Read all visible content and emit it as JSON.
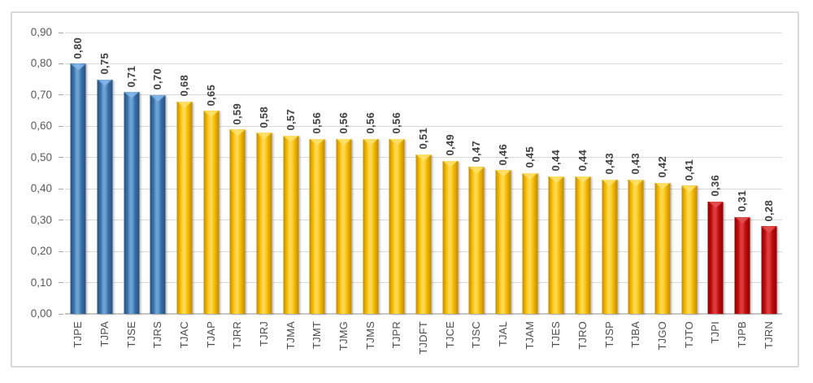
{
  "chart_data": {
    "type": "bar",
    "title": "",
    "xlabel": "",
    "ylabel": "",
    "categories": [
      "TJPE",
      "TJPA",
      "TJSE",
      "TJRS",
      "TJAC",
      "TJAP",
      "TJRR",
      "TJRJ",
      "TJMA",
      "TJMT",
      "TJMG",
      "TJMS",
      "TJPR",
      "TJDFT",
      "TJCE",
      "TJSC",
      "TJAL",
      "TJAM",
      "TJES",
      "TJRO",
      "TJSP",
      "TJBA",
      "TJGO",
      "TJTO",
      "TJPI",
      "TJPB",
      "TJRN"
    ],
    "values": [
      0.8,
      0.75,
      0.71,
      0.7,
      0.68,
      0.65,
      0.59,
      0.58,
      0.57,
      0.56,
      0.56,
      0.56,
      0.56,
      0.51,
      0.49,
      0.47,
      0.46,
      0.45,
      0.44,
      0.44,
      0.43,
      0.43,
      0.42,
      0.41,
      0.36,
      0.31,
      0.28
    ],
    "value_labels": [
      "0,80",
      "0,75",
      "0,71",
      "0,70",
      "0,68",
      "0,65",
      "0,59",
      "0,58",
      "0,57",
      "0,56",
      "0,56",
      "0,56",
      "0,56",
      "0,51",
      "0,49",
      "0,47",
      "0,46",
      "0,45",
      "0,44",
      "0,44",
      "0,43",
      "0,43",
      "0,42",
      "0,41",
      "0,36",
      "0,31",
      "0,28"
    ],
    "bar_groups": [
      "blue",
      "blue",
      "blue",
      "blue",
      "yellow",
      "yellow",
      "yellow",
      "yellow",
      "yellow",
      "yellow",
      "yellow",
      "yellow",
      "yellow",
      "yellow",
      "yellow",
      "yellow",
      "yellow",
      "yellow",
      "yellow",
      "yellow",
      "yellow",
      "yellow",
      "yellow",
      "yellow",
      "red",
      "red",
      "red"
    ],
    "group_colors": {
      "blue": {
        "dark": "#27527f",
        "base": "#3a6ea5",
        "light": "#6aa3d8",
        "cap": "#85b6e6"
      },
      "yellow": {
        "dark": "#bf8a00",
        "base": "#f5b800",
        "light": "#ffd94d",
        "cap": "#ffe06a"
      },
      "red": {
        "dark": "#8f0000",
        "base": "#bd0a0a",
        "light": "#dd3c3c",
        "cap": "#e05050"
      }
    },
    "ylim": [
      0,
      0.9
    ],
    "y_tick_step": 0.1,
    "y_tick_labels": [
      "0,00",
      "0,10",
      "0,20",
      "0,30",
      "0,40",
      "0,50",
      "0,60",
      "0,70",
      "0,80",
      "0,90"
    ],
    "decimal_separator": ",",
    "grid": true,
    "legend": false
  }
}
